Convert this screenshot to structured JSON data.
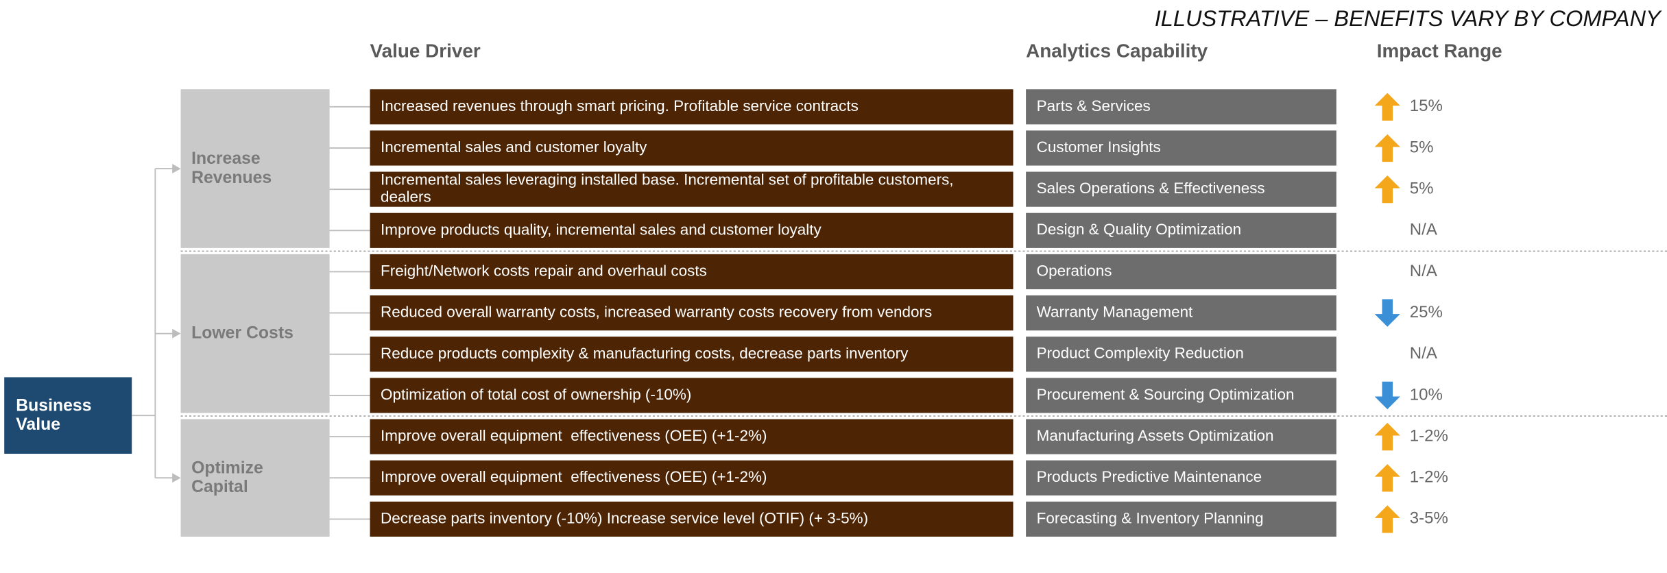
{
  "header": {
    "note": "ILLUSTRATIVE – BENEFITS VARY BY COMPANY",
    "columns": [
      "Value Driver",
      "Analytics Capability",
      "Impact Range"
    ]
  },
  "root": "Business Value",
  "groups": [
    {
      "name": "Increase Revenues",
      "rows": [
        {
          "driver": "Increased revenues through smart pricing. Profitable service contracts",
          "capability": "Parts & Services",
          "impact": "15%",
          "arrow": "up"
        },
        {
          "driver": "Incremental sales and customer loyalty",
          "capability": "Customer Insights",
          "impact": "5%",
          "arrow": "up"
        },
        {
          "driver": "Incremental sales leveraging installed base. Incremental set of profitable customers, dealers",
          "capability": "Sales Operations & Effectiveness",
          "impact": "5%",
          "arrow": "up"
        },
        {
          "driver": "Improve products quality, incremental sales and customer loyalty",
          "capability": "Design & Quality Optimization",
          "impact": "N/A"
        }
      ]
    },
    {
      "name": "Lower Costs",
      "rows": [
        {
          "driver": "Freight/Network costs repair and overhaul costs",
          "capability": "Operations",
          "impact": "N/A"
        },
        {
          "driver": "Reduced overall warranty costs, increased warranty costs recovery from vendors",
          "capability": "Warranty Management",
          "impact": "25%",
          "arrow": "down"
        },
        {
          "driver": "Reduce products complexity & manufacturing costs, decrease parts inventory",
          "capability": "Product Complexity Reduction",
          "impact": "N/A"
        },
        {
          "driver": "Optimization of total cost of ownership (-10%)",
          "capability": "Procurement & Sourcing Optimization",
          "impact": "10%",
          "arrow": "down"
        }
      ]
    },
    {
      "name": "Optimize Capital",
      "rows": [
        {
          "driver": "Improve overall equipment  effectiveness (OEE) (+1-2%)",
          "capability": "Manufacturing Assets Optimization",
          "impact": "1-2%",
          "arrow": "up"
        },
        {
          "driver": "Improve overall equipment  effectiveness (OEE) (+1-2%)",
          "capability": "Products Predictive Maintenance",
          "impact": "1-2%",
          "arrow": "up"
        },
        {
          "driver": "Decrease parts inventory (-10%) Increase service level (OTIF) (+ 3-5%)",
          "capability": "Forecasting & Inventory Planning",
          "impact": "3-5%",
          "arrow": "up"
        }
      ]
    }
  ]
}
